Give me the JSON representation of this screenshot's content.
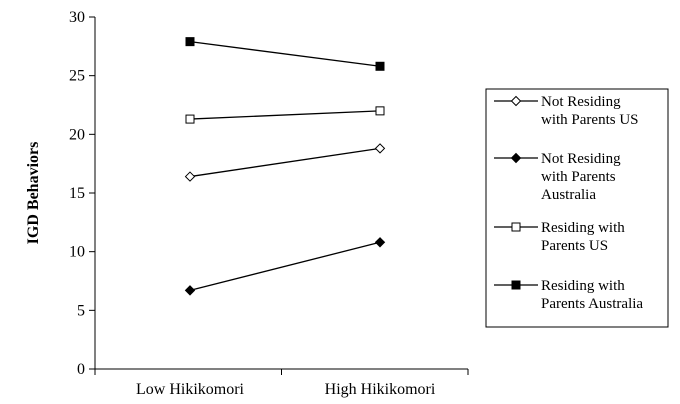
{
  "chart_data": {
    "type": "line",
    "title": "",
    "xlabel": "",
    "ylabel": "IGD Behaviors",
    "ylim": [
      0,
      30
    ],
    "yticks": [
      0,
      5,
      10,
      15,
      20,
      25,
      30
    ],
    "categories": [
      "Low Hikikomori",
      "High Hikikomori"
    ],
    "grid": false,
    "legend_position": "right",
    "series": [
      {
        "name": "Not Residing with Parents US",
        "legend_lines": [
          "Not Residing",
          "with Parents US"
        ],
        "marker": "diamond-open",
        "values": [
          16.4,
          18.8
        ]
      },
      {
        "name": "Not Residing with Parents Australia",
        "legend_lines": [
          "Not Residing",
          "with Parents",
          "Australia"
        ],
        "marker": "diamond-filled",
        "values": [
          6.7,
          10.8
        ]
      },
      {
        "name": "Residing with Parents US",
        "legend_lines": [
          "Residing with",
          "Parents US"
        ],
        "marker": "square-open",
        "values": [
          21.3,
          22.0
        ]
      },
      {
        "name": "Residing with Parents Australia",
        "legend_lines": [
          "Residing with",
          "Parents Australia"
        ],
        "marker": "square-filled",
        "values": [
          27.9,
          25.8
        ]
      }
    ]
  }
}
